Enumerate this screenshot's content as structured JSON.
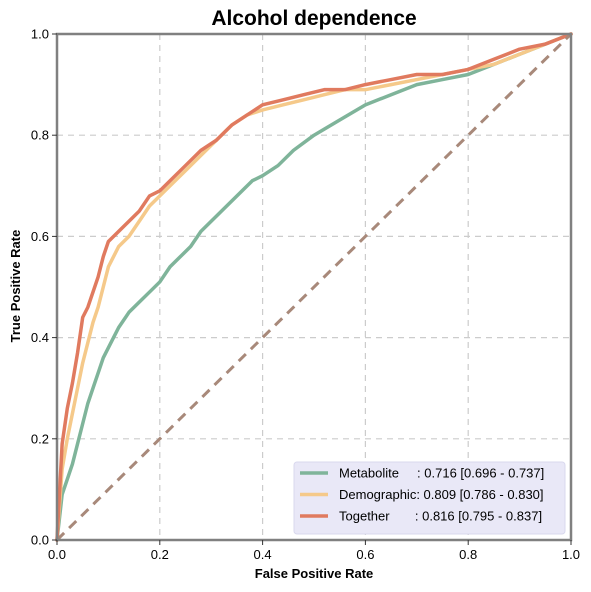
{
  "chart_data": {
    "type": "line",
    "title": "Alcohol dependence",
    "xlabel": "False Positive Rate",
    "ylabel": "True Positive Rate",
    "xlim": [
      0,
      1
    ],
    "ylim": [
      0,
      1
    ],
    "xticks": [
      0,
      0.2,
      0.4,
      0.6,
      0.8,
      1
    ],
    "xtick_labels": [
      "0.0",
      "0.2",
      "0.4",
      "0.6",
      "0.8",
      "1.0"
    ],
    "yticks": [
      0,
      0.2,
      0.4,
      0.6,
      0.8,
      1
    ],
    "ytick_labels": [
      "0.0",
      "0.2",
      "0.4",
      "0.6",
      "0.8",
      "1.0"
    ],
    "grid": true,
    "legend_position": "bottom-right",
    "series": [
      {
        "name": "Metabolite",
        "legend_label": "Metabolite     : 0.716 [0.696 - 0.737]",
        "color": "#7fb49a",
        "x": [
          0,
          0.01,
          0.02,
          0.03,
          0.04,
          0.05,
          0.06,
          0.07,
          0.08,
          0.09,
          0.1,
          0.11,
          0.12,
          0.14,
          0.16,
          0.18,
          0.2,
          0.22,
          0.24,
          0.26,
          0.28,
          0.3,
          0.32,
          0.34,
          0.36,
          0.38,
          0.4,
          0.43,
          0.46,
          0.5,
          0.55,
          0.6,
          0.65,
          0.7,
          0.75,
          0.8,
          0.85,
          0.9,
          0.95,
          1.0
        ],
        "y": [
          0,
          0.09,
          0.12,
          0.15,
          0.19,
          0.23,
          0.27,
          0.3,
          0.33,
          0.36,
          0.38,
          0.4,
          0.42,
          0.45,
          0.47,
          0.49,
          0.51,
          0.54,
          0.56,
          0.58,
          0.61,
          0.63,
          0.65,
          0.67,
          0.69,
          0.71,
          0.72,
          0.74,
          0.77,
          0.8,
          0.83,
          0.86,
          0.88,
          0.9,
          0.91,
          0.92,
          0.94,
          0.96,
          0.98,
          1.0
        ]
      },
      {
        "name": "Demographic",
        "legend_label": "Demographic: 0.809 [0.786 - 0.830]",
        "color": "#f5c98a",
        "x": [
          0,
          0.01,
          0.02,
          0.03,
          0.04,
          0.05,
          0.06,
          0.07,
          0.08,
          0.09,
          0.1,
          0.12,
          0.14,
          0.16,
          0.18,
          0.2,
          0.22,
          0.25,
          0.28,
          0.31,
          0.34,
          0.37,
          0.4,
          0.44,
          0.48,
          0.52,
          0.56,
          0.6,
          0.65,
          0.7,
          0.75,
          0.8,
          0.85,
          0.9,
          0.95,
          1.0
        ],
        "y": [
          0,
          0.14,
          0.2,
          0.25,
          0.3,
          0.35,
          0.39,
          0.43,
          0.46,
          0.5,
          0.54,
          0.58,
          0.6,
          0.63,
          0.66,
          0.68,
          0.7,
          0.73,
          0.76,
          0.79,
          0.82,
          0.84,
          0.85,
          0.86,
          0.87,
          0.88,
          0.89,
          0.89,
          0.9,
          0.91,
          0.92,
          0.93,
          0.94,
          0.96,
          0.98,
          1.0
        ]
      },
      {
        "name": "Together",
        "legend_label": "Together       : 0.816 [0.795 - 0.837]",
        "color": "#e07a5f",
        "x": [
          0,
          0.01,
          0.02,
          0.03,
          0.04,
          0.05,
          0.06,
          0.07,
          0.08,
          0.09,
          0.1,
          0.12,
          0.14,
          0.16,
          0.18,
          0.2,
          0.22,
          0.25,
          0.28,
          0.31,
          0.34,
          0.37,
          0.4,
          0.44,
          0.48,
          0.52,
          0.56,
          0.6,
          0.65,
          0.7,
          0.75,
          0.8,
          0.85,
          0.9,
          0.95,
          1.0
        ],
        "y": [
          0,
          0.19,
          0.26,
          0.31,
          0.37,
          0.44,
          0.46,
          0.49,
          0.52,
          0.56,
          0.59,
          0.61,
          0.63,
          0.65,
          0.68,
          0.69,
          0.71,
          0.74,
          0.77,
          0.79,
          0.82,
          0.84,
          0.86,
          0.87,
          0.88,
          0.89,
          0.89,
          0.9,
          0.91,
          0.92,
          0.92,
          0.93,
          0.95,
          0.97,
          0.98,
          1.0
        ]
      },
      {
        "name": "",
        "color": "#a8897a",
        "dashed": true,
        "x": [
          0,
          1
        ],
        "y": [
          0,
          1
        ]
      }
    ]
  }
}
